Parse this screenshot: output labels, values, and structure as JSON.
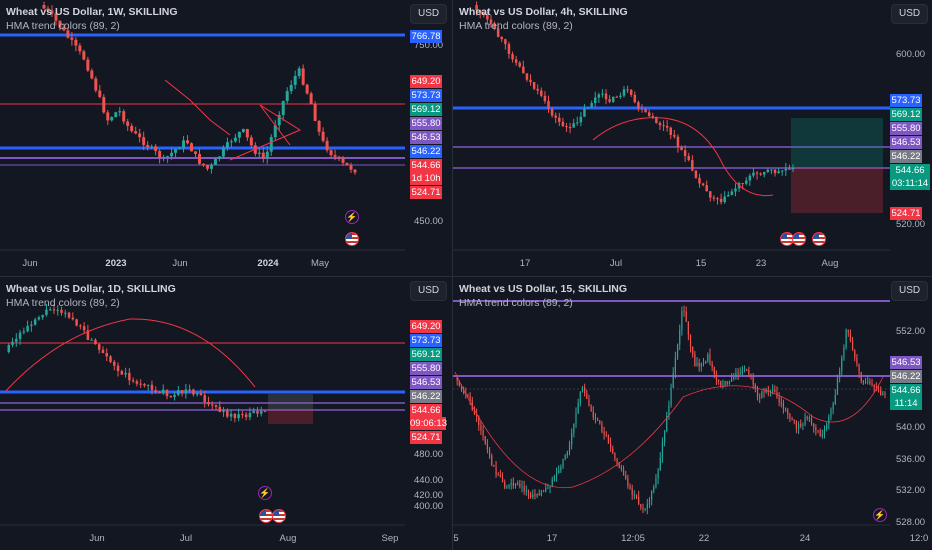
{
  "panes": [
    {
      "id": "p1",
      "title": "Wheat vs US Dollar, 1W, SKILLING",
      "subtitle": "HMA trend colors (89, 2)",
      "currency": "USD",
      "yticks": [
        "750.00",
        "450.00"
      ],
      "xticks": [
        "Jun",
        "2023",
        "Jun",
        "2024",
        "May"
      ],
      "tags": [
        {
          "text": "766.78",
          "color": "#2962ff"
        },
        {
          "text": "649.20",
          "color": "#f23645"
        },
        {
          "text": "573.73",
          "color": "#2962ff"
        },
        {
          "text": "569.12",
          "color": "#089981"
        },
        {
          "text": "555.80",
          "color": "#7e57c2"
        },
        {
          "text": "546.53",
          "color": "#7e57c2"
        },
        {
          "text": "546.22",
          "color": "#2962ff"
        },
        {
          "text": "544.66",
          "color": "#f23645"
        },
        {
          "text": "1d 10h",
          "color": "#f23645"
        },
        {
          "text": "524.71",
          "color": "#f23645"
        }
      ]
    },
    {
      "id": "p2",
      "title": "Wheat vs US Dollar, 4h, SKILLING",
      "subtitle": "HMA trend colors (89, 2)",
      "currency": "USD",
      "yticks": [
        "600.00",
        "520.00"
      ],
      "xticks": [
        "17",
        "Jul",
        "15",
        "23",
        "Aug"
      ],
      "tags": [
        {
          "text": "573.73",
          "color": "#2962ff"
        },
        {
          "text": "569.12",
          "color": "#089981"
        },
        {
          "text": "555.80",
          "color": "#7e57c2"
        },
        {
          "text": "546.53",
          "color": "#7e57c2"
        },
        {
          "text": "546.22",
          "color": "#787b86"
        },
        {
          "text": "544.66",
          "color": "#089981"
        },
        {
          "text": "03:11:14",
          "color": "#089981"
        },
        {
          "text": "524.71",
          "color": "#f23645"
        }
      ]
    },
    {
      "id": "p3",
      "title": "Wheat vs US Dollar, 1D, SKILLING",
      "subtitle": "HMA trend colors (89, 2)",
      "currency": "USD",
      "yticks": [
        "480.00",
        "440.00",
        "420.00",
        "400.00"
      ],
      "xticks": [
        "Jun",
        "Jul",
        "Aug",
        "Sep"
      ],
      "tags": [
        {
          "text": "649.20",
          "color": "#f23645"
        },
        {
          "text": "573.73",
          "color": "#2962ff"
        },
        {
          "text": "569.12",
          "color": "#089981"
        },
        {
          "text": "555.80",
          "color": "#7e57c2"
        },
        {
          "text": "546.53",
          "color": "#7e57c2"
        },
        {
          "text": "546.22",
          "color": "#787b86"
        },
        {
          "text": "544.66",
          "color": "#f23645"
        },
        {
          "text": "09:06:13",
          "color": "#f23645"
        },
        {
          "text": "524.71",
          "color": "#f23645"
        }
      ]
    },
    {
      "id": "p4",
      "title": "Wheat vs US Dollar, 15, SKILLING",
      "subtitle": "HMA trend colors (89, 2)",
      "currency": "USD",
      "yticks": [
        "552.00",
        "540.00",
        "536.00",
        "532.00",
        "528.00"
      ],
      "xticks": [
        "5",
        "17",
        "12:05",
        "22",
        "24",
        "12:0"
      ],
      "tags": [
        {
          "text": "546.53",
          "color": "#7e57c2"
        },
        {
          "text": "546.22",
          "color": "#787b86"
        },
        {
          "text": "544.66",
          "color": "#089981"
        },
        {
          "text": "11:14",
          "color": "#089981"
        }
      ]
    }
  ]
}
